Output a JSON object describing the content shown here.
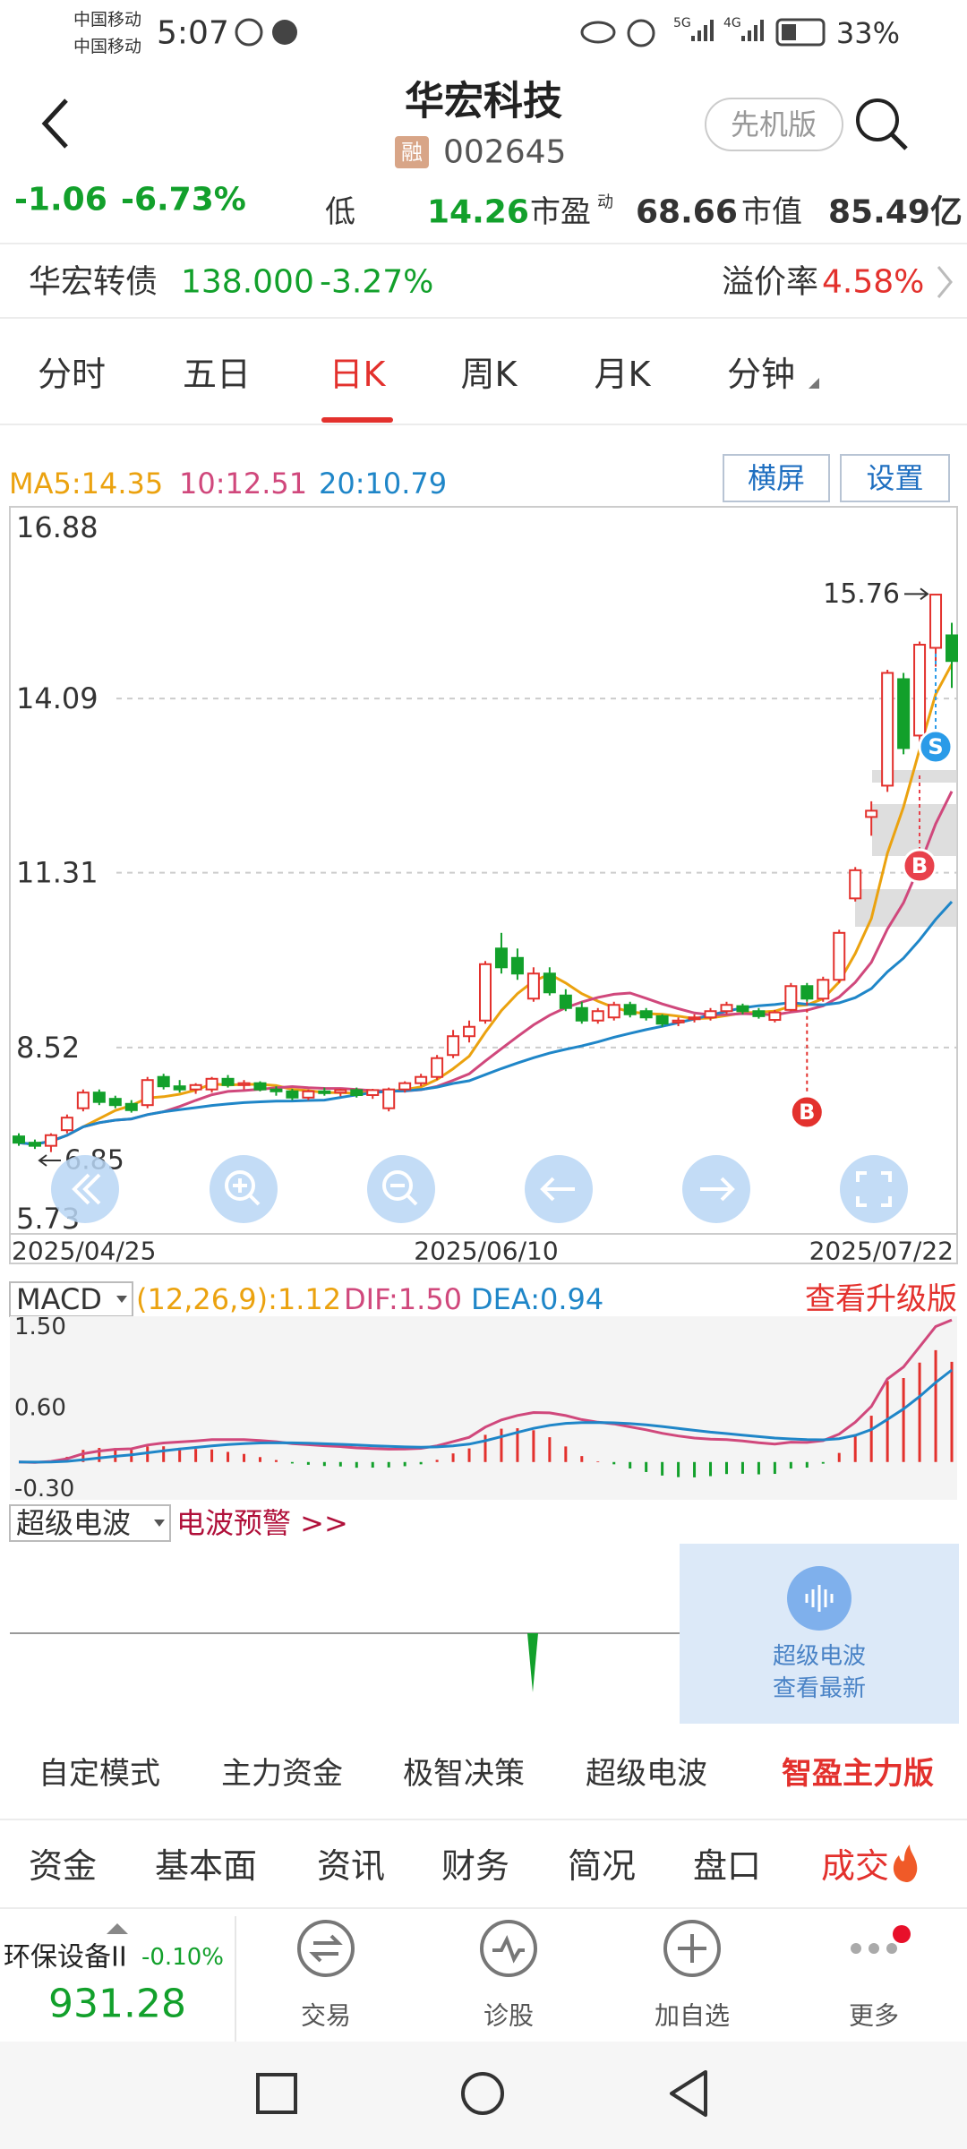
{
  "status_bar": {
    "carrier_1": "中国移动",
    "carrier_2": "中国移动",
    "time": "5:07",
    "network_1": "5G",
    "network_2": "4G",
    "battery": "33%"
  },
  "header": {
    "title": "华宏科技",
    "margin_badge": "融",
    "code": "002645",
    "mode_button": "先机版"
  },
  "quote": {
    "change": "-1.06",
    "change_pct": "-6.73%",
    "low_label": "低",
    "low": "14.26",
    "pe_label": "市盈",
    "pe_sup": "动",
    "pe": "68.66",
    "mcap_label": "市值",
    "mcap": "85.49亿"
  },
  "bond": {
    "name": "华宏转债",
    "price": "138.000",
    "change_pct": "-3.27%",
    "premium_label": "溢价率",
    "premium": "4.58%"
  },
  "period_tabs": [
    "分时",
    "五日",
    "日K",
    "周K",
    "月K",
    "分钟"
  ],
  "active_tab": 2,
  "chart_buttons": [
    "横屏",
    "设置"
  ],
  "ma_legend": [
    "MA5:14.35",
    "10:12.51",
    "20:10.79"
  ],
  "chart_data": {
    "type": "candlestick",
    "ylim": [
      5.73,
      16.88
    ],
    "yticks": [
      16.88,
      14.09,
      11.31,
      8.52,
      5.73
    ],
    "grid": true,
    "date_labels": [
      "2025/04/25",
      "2025/06/10",
      "2025/07/22"
    ],
    "signal_labels": {
      "buy": "B",
      "sell": "S"
    },
    "candles": [
      {
        "open": 7.1,
        "high": 7.15,
        "low": 6.95,
        "close": 7.0
      },
      {
        "open": 7.0,
        "high": 7.05,
        "low": 6.9,
        "close": 6.95
      },
      {
        "open": 6.95,
        "high": 7.15,
        "low": 6.85,
        "close": 7.12
      },
      {
        "open": 7.2,
        "high": 7.45,
        "low": 7.15,
        "close": 7.4
      },
      {
        "open": 7.55,
        "high": 7.85,
        "low": 7.5,
        "close": 7.8
      },
      {
        "open": 7.8,
        "high": 7.85,
        "low": 7.6,
        "close": 7.65
      },
      {
        "open": 7.7,
        "high": 7.75,
        "low": 7.55,
        "close": 7.6
      },
      {
        "open": 7.62,
        "high": 7.68,
        "low": 7.48,
        "close": 7.52
      },
      {
        "open": 7.6,
        "high": 8.05,
        "low": 7.55,
        "close": 8.0
      },
      {
        "open": 8.05,
        "high": 8.1,
        "low": 7.85,
        "close": 7.9
      },
      {
        "open": 7.9,
        "high": 8.0,
        "low": 7.8,
        "close": 7.85
      },
      {
        "open": 7.85,
        "high": 7.95,
        "low": 7.78,
        "close": 7.92
      },
      {
        "open": 7.85,
        "high": 8.05,
        "low": 7.8,
        "close": 8.02
      },
      {
        "open": 8.02,
        "high": 8.08,
        "low": 7.88,
        "close": 7.92
      },
      {
        "open": 7.92,
        "high": 8.0,
        "low": 7.85,
        "close": 7.95
      },
      {
        "open": 7.95,
        "high": 7.98,
        "low": 7.82,
        "close": 7.85
      },
      {
        "open": 7.85,
        "high": 7.9,
        "low": 7.75,
        "close": 7.82
      },
      {
        "open": 7.82,
        "high": 7.86,
        "low": 7.68,
        "close": 7.72
      },
      {
        "open": 7.72,
        "high": 7.85,
        "low": 7.68,
        "close": 7.82
      },
      {
        "open": 7.82,
        "high": 7.88,
        "low": 7.75,
        "close": 7.8
      },
      {
        "open": 7.8,
        "high": 7.86,
        "low": 7.74,
        "close": 7.84
      },
      {
        "open": 7.84,
        "high": 7.88,
        "low": 7.72,
        "close": 7.76
      },
      {
        "open": 7.76,
        "high": 7.86,
        "low": 7.7,
        "close": 7.84
      },
      {
        "open": 7.55,
        "high": 7.88,
        "low": 7.5,
        "close": 7.85
      },
      {
        "open": 7.85,
        "high": 7.98,
        "low": 7.8,
        "close": 7.95
      },
      {
        "open": 7.95,
        "high": 8.1,
        "low": 7.9,
        "close": 8.05
      },
      {
        "open": 8.05,
        "high": 8.4,
        "low": 8.0,
        "close": 8.35
      },
      {
        "open": 8.4,
        "high": 8.8,
        "low": 8.35,
        "close": 8.7
      },
      {
        "open": 8.7,
        "high": 8.95,
        "low": 8.6,
        "close": 8.85
      },
      {
        "open": 8.95,
        "high": 9.9,
        "low": 8.9,
        "close": 9.85
      },
      {
        "open": 10.1,
        "high": 10.35,
        "low": 9.7,
        "close": 9.8
      },
      {
        "open": 9.95,
        "high": 10.1,
        "low": 9.6,
        "close": 9.7
      },
      {
        "open": 9.3,
        "high": 9.8,
        "low": 9.25,
        "close": 9.7
      },
      {
        "open": 9.7,
        "high": 9.8,
        "low": 9.35,
        "close": 9.4
      },
      {
        "open": 9.35,
        "high": 9.45,
        "low": 9.1,
        "close": 9.15
      },
      {
        "open": 9.15,
        "high": 9.25,
        "low": 8.9,
        "close": 8.95
      },
      {
        "open": 8.95,
        "high": 9.15,
        "low": 8.9,
        "close": 9.1
      },
      {
        "open": 9.0,
        "high": 9.25,
        "low": 8.95,
        "close": 9.2
      },
      {
        "open": 9.2,
        "high": 9.25,
        "low": 9.0,
        "close": 9.05
      },
      {
        "open": 9.1,
        "high": 9.15,
        "low": 8.95,
        "close": 9.0
      },
      {
        "open": 9.02,
        "high": 9.05,
        "low": 8.85,
        "close": 8.9
      },
      {
        "open": 8.92,
        "high": 9.0,
        "low": 8.86,
        "close": 8.95
      },
      {
        "open": 8.98,
        "high": 9.05,
        "low": 8.92,
        "close": 9.0
      },
      {
        "open": 9.0,
        "high": 9.15,
        "low": 8.95,
        "close": 9.1
      },
      {
        "open": 9.1,
        "high": 9.25,
        "low": 9.05,
        "close": 9.2
      },
      {
        "open": 9.18,
        "high": 9.22,
        "low": 9.05,
        "close": 9.1
      },
      {
        "open": 9.1,
        "high": 9.15,
        "low": 8.98,
        "close": 9.02
      },
      {
        "open": 8.96,
        "high": 9.12,
        "low": 8.92,
        "close": 9.08
      },
      {
        "open": 9.12,
        "high": 9.55,
        "low": 9.1,
        "close": 9.5
      },
      {
        "open": 9.5,
        "high": 9.55,
        "low": 9.25,
        "close": 9.3
      },
      {
        "open": 9.3,
        "high": 9.65,
        "low": 9.25,
        "close": 9.6
      },
      {
        "open": 9.6,
        "high": 10.4,
        "low": 9.55,
        "close": 10.35
      },
      {
        "open": 10.9,
        "high": 11.4,
        "low": 10.85,
        "close": 11.35
      },
      {
        "open": 12.2,
        "high": 12.45,
        "low": 11.9,
        "close": 12.3
      },
      {
        "open": 12.7,
        "high": 14.55,
        "low": 12.6,
        "close": 14.5
      },
      {
        "open": 14.4,
        "high": 14.5,
        "low": 13.2,
        "close": 13.3
      },
      {
        "open": 13.5,
        "high": 15.0,
        "low": 13.4,
        "close": 14.95
      },
      {
        "open": 14.9,
        "high": 15.76,
        "low": 14.6,
        "close": 15.75
      },
      {
        "open": 15.1,
        "high": 15.3,
        "low": 14.26,
        "close": 14.69
      }
    ]
  },
  "macd": {
    "selector": "MACD",
    "params": "(12,26,9):1.12",
    "dif": "DIF:1.50",
    "dea": "DEA:0.94",
    "upgrade": "查看升级版",
    "ylim": [
      -0.42,
      1.62
    ],
    "yticks": [
      {
        "value": 1.5,
        "label": "1.50"
      },
      {
        "value": 0.6,
        "label": "0.60"
      },
      {
        "value": -0.3,
        "label": "-0.30"
      }
    ]
  },
  "wave": {
    "selector": "超级电波",
    "alert": "电波预警 >>",
    "card_line1": "超级电波",
    "card_line2": "查看最新"
  },
  "mode_tabs": [
    "自定模式",
    "主力资金",
    "极智决策",
    "超级电波",
    "智盈主力版"
  ],
  "info_tabs": [
    "资金",
    "基本面",
    "资讯",
    "财务",
    "简况",
    "盘口",
    "成交"
  ],
  "bottom_bar": {
    "sector": "环保设备II",
    "sector_change": "-0.10%",
    "sector_index": "931.28",
    "actions": [
      "交易",
      "诊股",
      "加自选",
      "更多"
    ]
  }
}
